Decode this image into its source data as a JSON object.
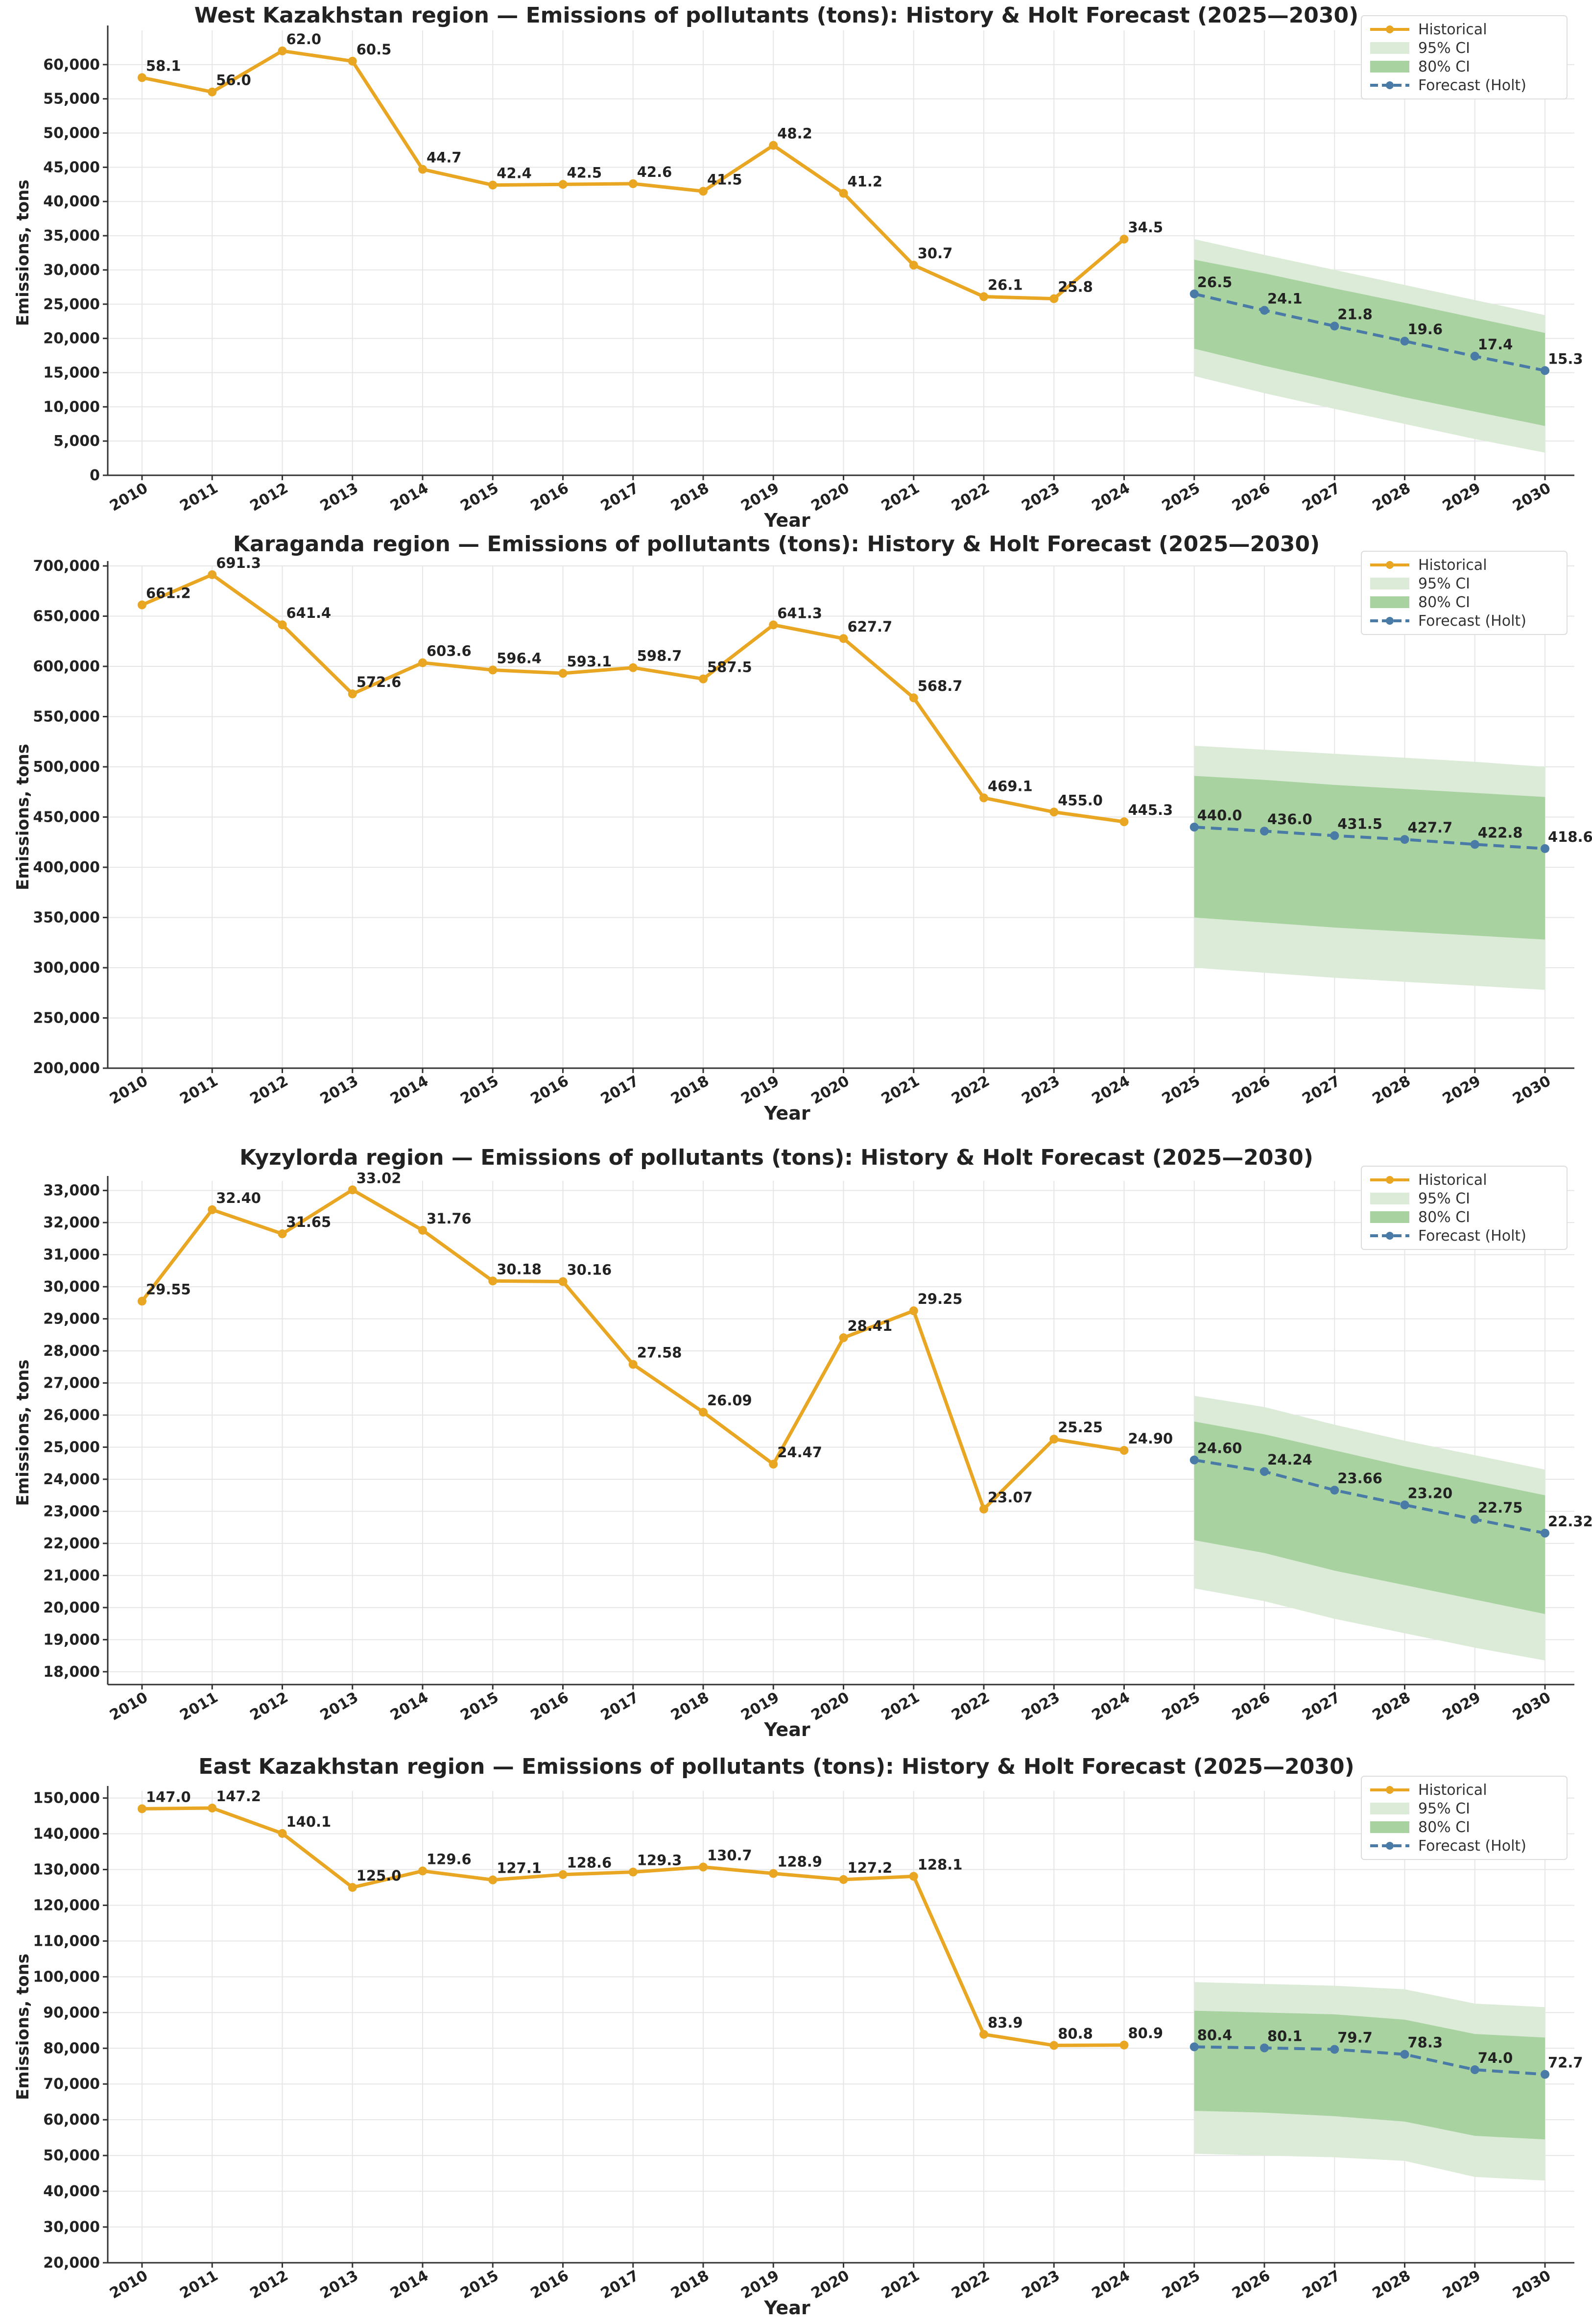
{
  "colors": {
    "historical": "#E8A623",
    "ci95": "#DCEBD8",
    "ci80": "#A8D3A0",
    "forecast": "#4A7BA6"
  },
  "legend": {
    "historical": "Historical",
    "ci95": "95% CI",
    "ci80": "80% CI",
    "forecast": "Forecast (Holt)"
  },
  "chart_data": [
    {
      "type": "line",
      "title": "West Kazakhstan region — Emissions of pollutants (tons): History & Holt Forecast (2025—2030)",
      "xlabel": "Year",
      "ylabel": "Emissions, tons",
      "ylim": [
        0,
        65000
      ],
      "yticks": [
        0,
        5000,
        10000,
        15000,
        20000,
        25000,
        30000,
        35000,
        40000,
        45000,
        50000,
        55000,
        60000
      ],
      "ytick_labels": [
        "0",
        "5,000",
        "10,000",
        "15,000",
        "20,000",
        "25,000",
        "30,000",
        "35,000",
        "40,000",
        "45,000",
        "50,000",
        "55,000",
        "60,000"
      ],
      "x": [
        2010,
        2011,
        2012,
        2013,
        2014,
        2015,
        2016,
        2017,
        2018,
        2019,
        2020,
        2021,
        2022,
        2023,
        2024,
        2025,
        2026,
        2027,
        2028,
        2029,
        2030
      ],
      "historical": {
        "years": [
          2010,
          2011,
          2012,
          2013,
          2014,
          2015,
          2016,
          2017,
          2018,
          2019,
          2020,
          2021,
          2022,
          2023,
          2024
        ],
        "values": [
          58100,
          56000,
          62000,
          60500,
          44700,
          42400,
          42500,
          42600,
          41500,
          48200,
          41200,
          30700,
          26100,
          25800,
          34500
        ],
        "labels": [
          "58.1",
          "56.0",
          "62.0",
          "60.5",
          "44.7",
          "42.4",
          "42.5",
          "42.6",
          "41.5",
          "48.2",
          "41.2",
          "30.7",
          "26.1",
          "25.8",
          "34.5"
        ]
      },
      "forecast": {
        "years": [
          2025,
          2026,
          2027,
          2028,
          2029,
          2030
        ],
        "values": [
          26500,
          24100,
          21800,
          19600,
          17400,
          15300
        ],
        "labels": [
          "26.5",
          "24.1",
          "21.8",
          "19.6",
          "17.4",
          "15.3"
        ],
        "ci80_low": [
          18500,
          16000,
          13700,
          11400,
          9300,
          7200
        ],
        "ci80_high": [
          31500,
          29500,
          27300,
          25200,
          23000,
          20800
        ],
        "ci95_low": [
          14500,
          12000,
          9700,
          7500,
          5300,
          3300
        ],
        "ci95_high": [
          34500,
          32200,
          30000,
          27800,
          25600,
          23400
        ]
      },
      "legend_position": "top-right"
    },
    {
      "type": "line",
      "title": "Karaganda region — Emissions of pollutants (tons): History & Holt Forecast (2025—2030)",
      "xlabel": "Year",
      "ylabel": "Emissions, tons",
      "ylim": [
        200000,
        700000
      ],
      "yticks": [
        200000,
        250000,
        300000,
        350000,
        400000,
        450000,
        500000,
        550000,
        600000,
        650000,
        700000
      ],
      "ytick_labels": [
        "200,000",
        "250,000",
        "300,000",
        "350,000",
        "400,000",
        "450,000",
        "500,000",
        "550,000",
        "600,000",
        "650,000",
        "700,000"
      ],
      "x": [
        2010,
        2011,
        2012,
        2013,
        2014,
        2015,
        2016,
        2017,
        2018,
        2019,
        2020,
        2021,
        2022,
        2023,
        2024,
        2025,
        2026,
        2027,
        2028,
        2029,
        2030
      ],
      "historical": {
        "years": [
          2010,
          2011,
          2012,
          2013,
          2014,
          2015,
          2016,
          2017,
          2018,
          2019,
          2020,
          2021,
          2022,
          2023,
          2024
        ],
        "values": [
          661200,
          691300,
          641400,
          572600,
          603600,
          596400,
          593100,
          598700,
          587500,
          641300,
          627700,
          568700,
          469100,
          455000,
          445300
        ],
        "labels": [
          "661.2",
          "691.3",
          "641.4",
          "572.6",
          "603.6",
          "596.4",
          "593.1",
          "598.7",
          "587.5",
          "641.3",
          "627.7",
          "568.7",
          "469.1",
          "455.0",
          "445.3"
        ]
      },
      "forecast": {
        "years": [
          2025,
          2026,
          2027,
          2028,
          2029,
          2030
        ],
        "values": [
          440000,
          436000,
          431500,
          427700,
          422800,
          418600
        ],
        "labels": [
          "440.0",
          "436.0",
          "431.5",
          "427.7",
          "422.8",
          "418.6"
        ],
        "ci80_low": [
          350000,
          345000,
          340000,
          336000,
          332000,
          328000
        ],
        "ci80_high": [
          491000,
          487000,
          482000,
          478000,
          474000,
          470000
        ],
        "ci95_low": [
          300000,
          295000,
          290000,
          286000,
          282000,
          278000
        ],
        "ci95_high": [
          521000,
          517000,
          513000,
          509000,
          505000,
          500000
        ]
      },
      "legend_position": "top-right"
    },
    {
      "type": "line",
      "title": "Kyzylorda region — Emissions of pollutants (tons): History & Holt Forecast (2025—2030)",
      "xlabel": "Year",
      "ylabel": "Emissions, tons",
      "ylim": [
        17600,
        33300
      ],
      "yticks": [
        18000,
        19000,
        20000,
        21000,
        22000,
        23000,
        24000,
        25000,
        26000,
        27000,
        28000,
        29000,
        30000,
        31000,
        32000,
        33000
      ],
      "ytick_labels": [
        "18,000",
        "19,000",
        "20,000",
        "21,000",
        "22,000",
        "23,000",
        "24,000",
        "25,000",
        "26,000",
        "27,000",
        "28,000",
        "29,000",
        "30,000",
        "31,000",
        "32,000",
        "33,000"
      ],
      "x": [
        2010,
        2011,
        2012,
        2013,
        2014,
        2015,
        2016,
        2017,
        2018,
        2019,
        2020,
        2021,
        2022,
        2023,
        2024,
        2025,
        2026,
        2027,
        2028,
        2029,
        2030
      ],
      "historical": {
        "years": [
          2010,
          2011,
          2012,
          2013,
          2014,
          2015,
          2016,
          2017,
          2018,
          2019,
          2020,
          2021,
          2022,
          2023,
          2024
        ],
        "values": [
          29550,
          32400,
          31650,
          33020,
          31760,
          30180,
          30160,
          27580,
          26090,
          24470,
          28410,
          29250,
          23070,
          25250,
          24900
        ],
        "labels": [
          "29.55",
          "32.40",
          "31.65",
          "33.02",
          "31.76",
          "30.18",
          "30.16",
          "27.58",
          "26.09",
          "24.47",
          "28.41",
          "29.25",
          "23.07",
          "25.25",
          "24.90"
        ]
      },
      "forecast": {
        "years": [
          2025,
          2026,
          2027,
          2028,
          2029,
          2030
        ],
        "values": [
          24600,
          24240,
          23660,
          23200,
          22750,
          22320
        ],
        "labels": [
          "24.60",
          "24.24",
          "23.66",
          "23.20",
          "22.75",
          "22.32"
        ],
        "ci80_low": [
          22100,
          21700,
          21150,
          20700,
          20250,
          19800
        ],
        "ci80_high": [
          25800,
          25400,
          24900,
          24400,
          23950,
          23500
        ],
        "ci95_low": [
          20600,
          20200,
          19650,
          19200,
          18750,
          18350
        ],
        "ci95_high": [
          26600,
          26250,
          25700,
          25200,
          24750,
          24300
        ]
      },
      "legend_position": "top-right"
    },
    {
      "type": "line",
      "title": "East Kazakhstan region — Emissions of pollutants (tons): History & Holt Forecast (2025—2030)",
      "xlabel": "Year",
      "ylabel": "Emissions, tons",
      "ylim": [
        20000,
        152000
      ],
      "yticks": [
        20000,
        30000,
        40000,
        50000,
        60000,
        70000,
        80000,
        90000,
        100000,
        110000,
        120000,
        130000,
        140000,
        150000
      ],
      "ytick_labels": [
        "20,000",
        "30,000",
        "40,000",
        "50,000",
        "60,000",
        "70,000",
        "80,000",
        "90,000",
        "100,000",
        "110,000",
        "120,000",
        "130,000",
        "140,000",
        "150,000"
      ],
      "x": [
        2010,
        2011,
        2012,
        2013,
        2014,
        2015,
        2016,
        2017,
        2018,
        2019,
        2020,
        2021,
        2022,
        2023,
        2024,
        2025,
        2026,
        2027,
        2028,
        2029,
        2030
      ],
      "historical": {
        "years": [
          2010,
          2011,
          2012,
          2013,
          2014,
          2015,
          2016,
          2017,
          2018,
          2019,
          2020,
          2021,
          2022,
          2023,
          2024
        ],
        "values": [
          147000,
          147200,
          140100,
          125000,
          129600,
          127100,
          128600,
          129300,
          130700,
          128900,
          127200,
          128100,
          83900,
          80800,
          80900
        ],
        "labels": [
          "147.0",
          "147.2",
          "140.1",
          "125.0",
          "129.6",
          "127.1",
          "128.6",
          "129.3",
          "130.7",
          "128.9",
          "127.2",
          "128.1",
          "83.9",
          "80.8",
          "80.9"
        ]
      },
      "forecast": {
        "years": [
          2025,
          2026,
          2027,
          2028,
          2029,
          2030
        ],
        "values": [
          80400,
          80100,
          79700,
          78300,
          74000,
          72700
        ],
        "labels": [
          "80.4",
          "80.1",
          "79.7",
          "78.3",
          "74.0",
          "72.7"
        ],
        "ci80_low": [
          62500,
          62000,
          61000,
          59500,
          55500,
          54500
        ],
        "ci80_high": [
          90500,
          90000,
          89500,
          88000,
          84000,
          83000
        ],
        "ci95_low": [
          50500,
          50000,
          49500,
          48500,
          44000,
          43000
        ],
        "ci95_high": [
          98500,
          98000,
          97500,
          96500,
          92500,
          91500
        ]
      },
      "legend_position": "top-right"
    }
  ]
}
